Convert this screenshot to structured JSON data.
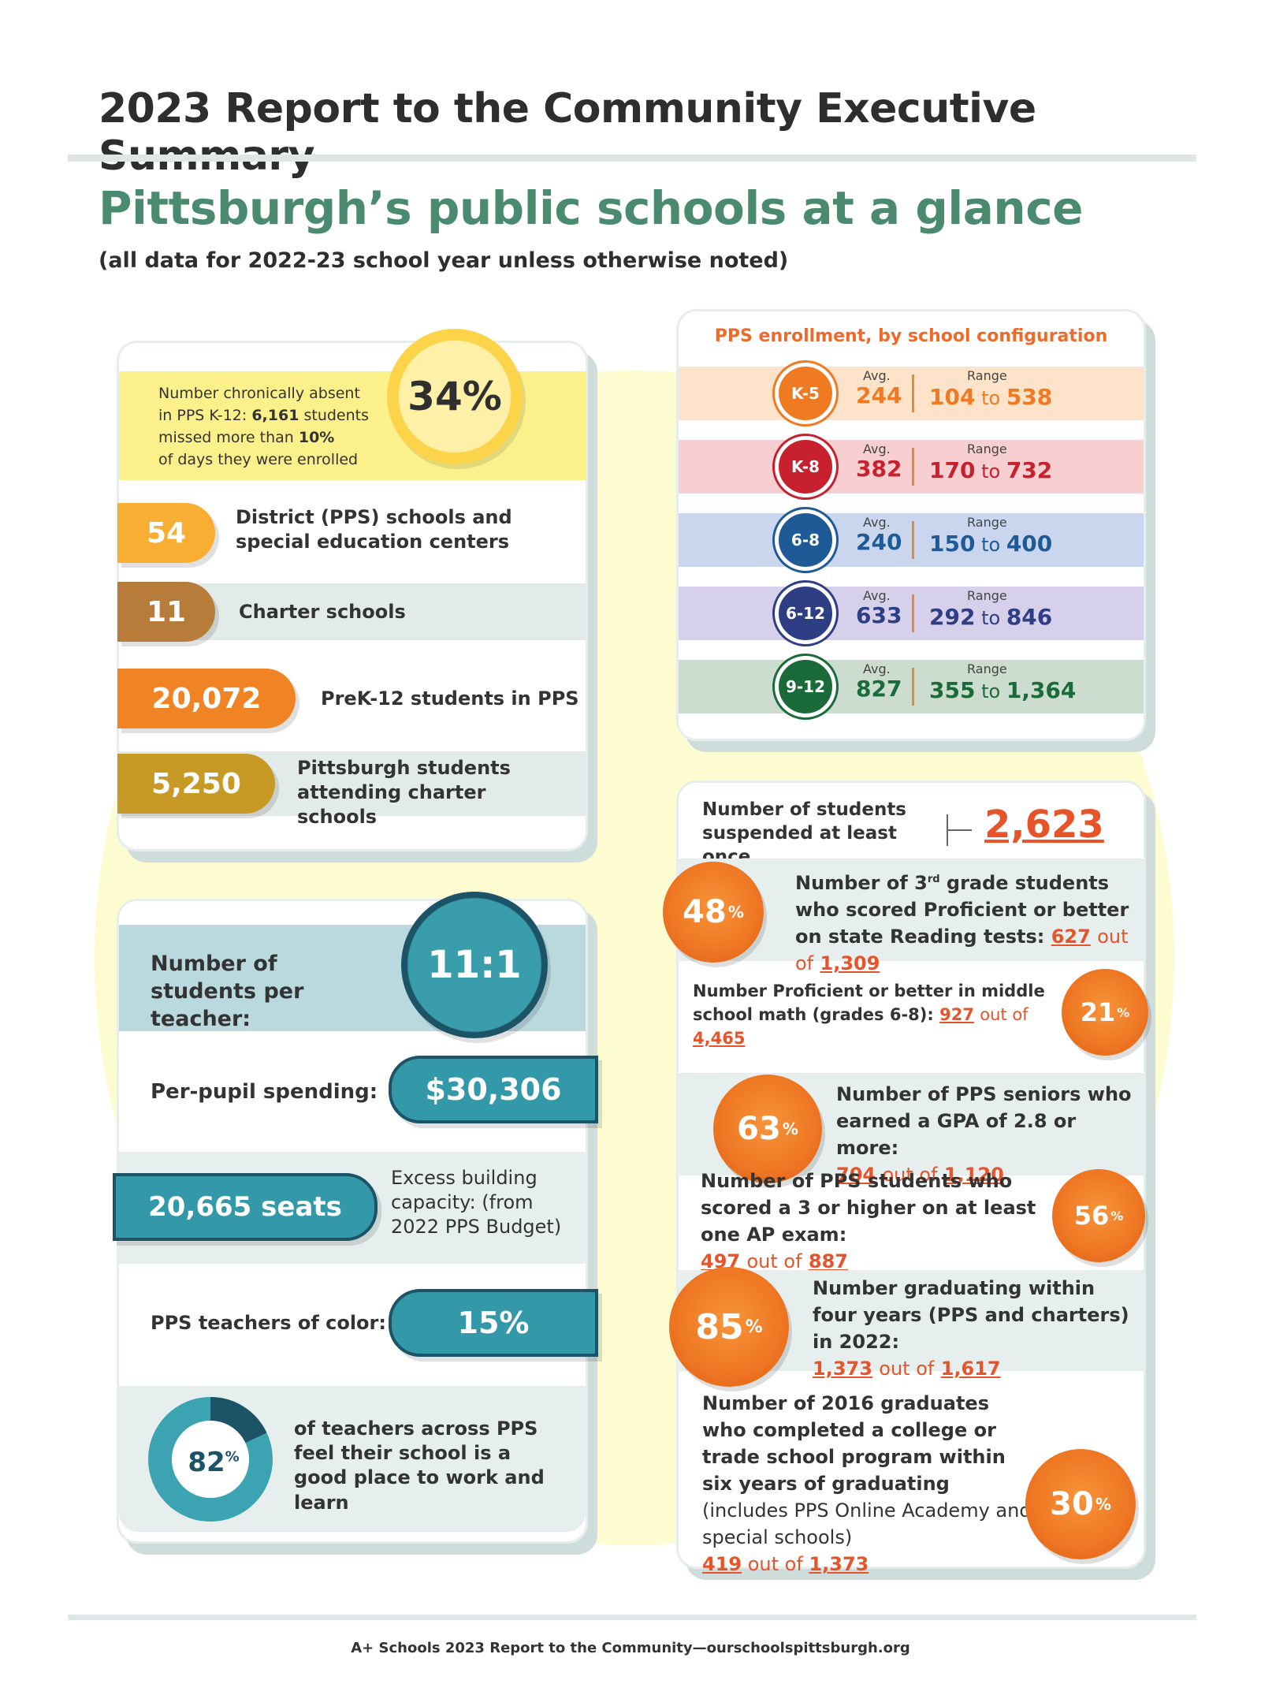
{
  "header": {
    "title": "2023 Report to the Community Executive Summary",
    "subtitle": "Pittsburgh’s public schools at a glance",
    "note": "(all data for 2022-23 school year unless otherwise noted)"
  },
  "absence": {
    "text_1": "Number chronically absent",
    "text_2": "in PPS K-12: ",
    "students": "6,161",
    "text_3": " students",
    "text_4": "missed more than ",
    "pct": "10%",
    "text_5": "of days they were enrolled",
    "value": "34%"
  },
  "stats_left": [
    {
      "value": "54",
      "label": "District (PPS) schools and special education centers"
    },
    {
      "value": "11",
      "label": "Charter schools"
    },
    {
      "value": "20,072",
      "label": "PreK-12 students in PPS"
    },
    {
      "value": "5,250",
      "label": "Pittsburgh students attending charter schools"
    }
  ],
  "teachers": {
    "ratio_label": "Number of students per teacher:",
    "ratio": "11:1",
    "spending_label": "Per-pupil spending:",
    "spending": "$30,306",
    "seats": "20,665 seats",
    "capacity_label": "Excess building capacity: (from 2022 PPS Budget)",
    "color_label": "PPS teachers of color:",
    "color_value": "15%",
    "good_place_value": "82",
    "good_place_pct": 82,
    "good_place_sign": "%",
    "good_place_label": "of teachers across PPS feel their school is a good place to work and learn"
  },
  "enrollment": {
    "title": "PPS enrollment, by school configuration",
    "avg_label": "Avg.",
    "range_label": "Range",
    "to": "to",
    "rows": [
      {
        "grade": "K-5",
        "avg": "244",
        "low": "104",
        "high": "538",
        "color": "#f07a22",
        "band": "#fde3c9"
      },
      {
        "grade": "K-8",
        "avg": "382",
        "low": "170",
        "high": "732",
        "color": "#c7202f",
        "band": "#f8cfd0"
      },
      {
        "grade": "6-8",
        "avg": "240",
        "low": "150",
        "high": "400",
        "color": "#1e5a96",
        "band": "#c9d6ee"
      },
      {
        "grade": "6-12",
        "avg": "633",
        "low": "292",
        "high": "846",
        "color": "#2d3e85",
        "band": "#d6d0ea"
      },
      {
        "grade": "9-12",
        "avg": "827",
        "low": "355",
        "high": "1,364",
        "color": "#1b6b3a",
        "band": "#ccdccf"
      }
    ]
  },
  "outcomes": {
    "suspended_label": "Number of students suspended at least once",
    "suspended": "2,623",
    "out_of": "out of",
    "reading": {
      "pct": "48",
      "label_1": "Number of 3",
      "label_sup": "rd",
      "label_2": " grade students who scored Proficient or better on state Reading tests: ",
      "n": "627",
      "d": "1,309"
    },
    "math": {
      "pct": "21",
      "label": "Number Proficient or better in middle school math (grades 6-8): ",
      "n": "927",
      "d": "4,465"
    },
    "gpa": {
      "pct": "63",
      "label": "Number of PPS seniors who earned a GPA of 2.8 or more:",
      "n": "704",
      "d": "1,120"
    },
    "ap": {
      "pct": "56",
      "label": "Number of PPS students who scored a 3 or higher on at least one AP exam:",
      "n": "497",
      "d": "887"
    },
    "grad": {
      "pct": "85",
      "label": "Number graduating within four years (PPS and charters) in 2022:",
      "n": "1,373",
      "d": "1,617"
    },
    "college": {
      "pct": "30",
      "label_bold": "Number of 2016 graduates who completed a college or trade school program within six years of graduating",
      "label_rest": " (includes PPS Online Academy and special schools)",
      "n": "419",
      "d": "1,373"
    },
    "pct_sign": "%"
  },
  "footer": "A+ Schools 2023 Report to the Community—ourschoolspittsburgh.org",
  "colors": {
    "teal": "#3399a8",
    "navy": "#1e5b6e",
    "orange": "#ee7623",
    "green": "#4a8a6e"
  }
}
